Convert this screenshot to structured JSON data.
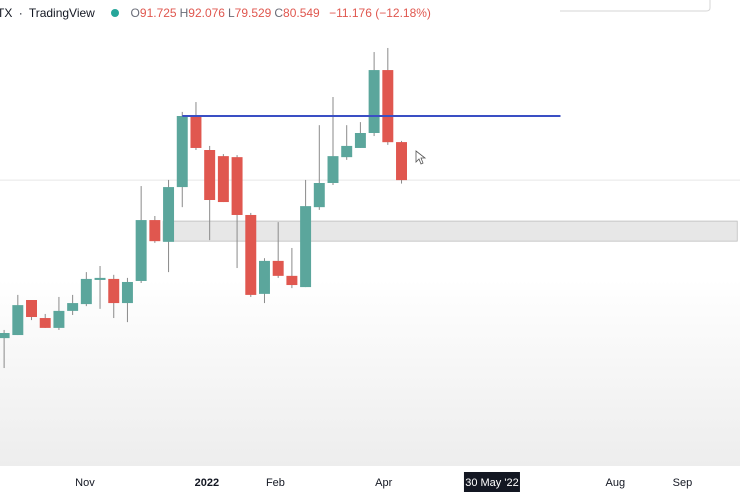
{
  "header": {
    "symbol": "TX",
    "separator": "·",
    "source": "TradingView",
    "ohlc": [
      {
        "letter": "O",
        "value": "91.725"
      },
      {
        "letter": "H",
        "value": "92.076"
      },
      {
        "letter": "L",
        "value": "79.529"
      },
      {
        "letter": "C",
        "value": "80.549"
      }
    ],
    "change": "−11.176 (−12.18%)"
  },
  "chart_data": {
    "type": "candlestick",
    "categories": [
      null,
      null,
      null,
      null,
      null,
      null,
      null,
      null,
      null,
      null,
      null,
      null,
      null,
      null,
      null,
      null,
      null,
      null,
      null,
      null,
      null,
      null,
      null,
      null,
      null,
      null,
      null,
      null,
      null,
      null
    ],
    "open": [
      34.1,
      35.0,
      45.3,
      40.0,
      37.1,
      42.1,
      44.1,
      51.2,
      51.5,
      44.4,
      50.9,
      68.8,
      62.4,
      78.5,
      99.4,
      89.4,
      87.6,
      87.3,
      70.3,
      47.1,
      56.8,
      52.4,
      49.1,
      72.6,
      79.7,
      87.3,
      90.0,
      94.4,
      112.9,
      91.725
    ],
    "high": [
      36.5,
      46.8,
      45.3,
      41.2,
      46.2,
      46.8,
      53.5,
      55.3,
      52.7,
      51.8,
      78.8,
      70.0,
      80.6,
      100.6,
      103.5,
      90.6,
      88.2,
      87.9,
      70.9,
      57.6,
      68.2,
      60.6,
      80.6,
      96.7,
      105.0,
      96.7,
      97.6,
      118.2,
      119.4,
      92.076
    ],
    "low": [
      25.3,
      35.0,
      39.4,
      37.1,
      36.5,
      40.9,
      43.5,
      42.7,
      40.0,
      38.8,
      50.3,
      62.1,
      53.5,
      72.6,
      89.4,
      62.9,
      74.1,
      54.7,
      46.2,
      44.4,
      51.8,
      48.8,
      49.1,
      71.8,
      79.1,
      86.5,
      90.0,
      93.5,
      90.9,
      79.529
    ],
    "close": [
      35.6,
      43.8,
      40.3,
      37.1,
      42.1,
      44.4,
      51.5,
      51.8,
      44.4,
      50.6,
      68.8,
      62.6,
      78.5,
      99.4,
      90.0,
      74.7,
      74.1,
      70.3,
      46.8,
      56.8,
      52.4,
      49.7,
      72.9,
      79.7,
      87.6,
      90.6,
      94.4,
      112.9,
      91.7,
      80.549
    ],
    "up_color": "#5ba69c",
    "down_color": "#e0574f",
    "ylim": [
      -3.5,
      133.5
    ],
    "xlim": [
      -0.3,
      53.7
    ],
    "xticks": [
      {
        "value": 5.9,
        "label": "Nov"
      },
      {
        "value": 14.8,
        "label": "2022"
      },
      {
        "value": 19.8,
        "label": "Feb"
      },
      {
        "value": 27.7,
        "label": "Apr"
      },
      {
        "value": 44.6,
        "label": "Aug"
      },
      {
        "value": 49.5,
        "label": "Sep"
      }
    ],
    "crosshair_x": {
      "value": 35.6,
      "label": "30 May '22"
    },
    "levels": [
      {
        "value": 99.4,
        "from": 13,
        "to": 40.6,
        "color": "#3a4fc4"
      }
    ],
    "zones": [
      {
        "low": 62.6,
        "high": 68.5,
        "from": 11.6,
        "to": 53.5
      }
    ],
    "last_price_line": true
  }
}
